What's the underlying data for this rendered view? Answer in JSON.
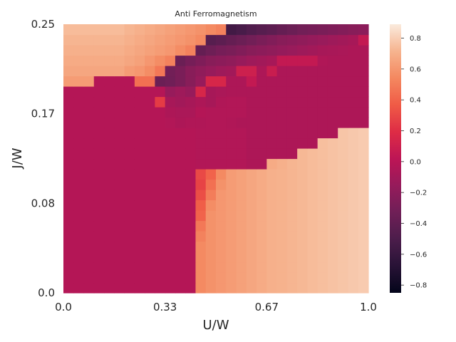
{
  "chart_data": {
    "type": "heatmap",
    "title": "Anti Ferromagnetism",
    "xlabel": "U/W",
    "ylabel": "J/W",
    "xlim": [
      0.0,
      1.0
    ],
    "ylim": [
      0.0,
      0.25
    ],
    "x_ticks": [
      "0.0",
      "0.33",
      "0.67",
      "1.0"
    ],
    "y_ticks": [
      "0.0",
      "0.08",
      "0.17",
      "0.25"
    ],
    "colorbar": {
      "range": [
        -0.85,
        0.89
      ],
      "ticks": [
        "−0.8",
        "−0.6",
        "−0.4",
        "−0.2",
        "0.0",
        "0.2",
        "0.4",
        "0.6",
        "0.8"
      ],
      "tick_values": [
        -0.8,
        -0.6,
        -0.4,
        -0.2,
        0.0,
        0.2,
        0.4,
        0.6,
        0.8
      ],
      "colormap": "rocket"
    },
    "grid": false,
    "n_cols": 30,
    "n_rows": 26,
    "row_order": "bottom-to-top (row 0 is J/W = 0)",
    "values": [
      [
        -0.02,
        -0.02,
        -0.02,
        -0.02,
        -0.02,
        -0.02,
        -0.02,
        -0.02,
        -0.02,
        -0.02,
        -0.02,
        -0.02,
        -0.02,
        0.55,
        0.58,
        0.6,
        0.62,
        0.64,
        0.66,
        0.68,
        0.7,
        0.71,
        0.72,
        0.73,
        0.74,
        0.75,
        0.76,
        0.77,
        0.78,
        0.79
      ],
      [
        -0.02,
        -0.02,
        -0.02,
        -0.02,
        -0.02,
        -0.02,
        -0.02,
        -0.02,
        -0.02,
        -0.02,
        -0.02,
        -0.02,
        -0.02,
        0.55,
        0.58,
        0.6,
        0.62,
        0.64,
        0.66,
        0.68,
        0.7,
        0.71,
        0.72,
        0.73,
        0.74,
        0.75,
        0.76,
        0.77,
        0.78,
        0.79
      ],
      [
        -0.02,
        -0.02,
        -0.02,
        -0.02,
        -0.02,
        -0.02,
        -0.02,
        -0.02,
        -0.02,
        -0.02,
        -0.02,
        -0.02,
        -0.02,
        0.55,
        0.58,
        0.6,
        0.62,
        0.64,
        0.66,
        0.68,
        0.7,
        0.71,
        0.72,
        0.73,
        0.74,
        0.75,
        0.76,
        0.77,
        0.78,
        0.79
      ],
      [
        -0.02,
        -0.02,
        -0.02,
        -0.02,
        -0.02,
        -0.02,
        -0.02,
        -0.02,
        -0.02,
        -0.02,
        -0.02,
        -0.02,
        -0.02,
        0.55,
        0.58,
        0.6,
        0.62,
        0.64,
        0.66,
        0.68,
        0.7,
        0.71,
        0.72,
        0.73,
        0.74,
        0.75,
        0.76,
        0.77,
        0.78,
        0.79
      ],
      [
        -0.02,
        -0.02,
        -0.02,
        -0.02,
        -0.02,
        -0.02,
        -0.02,
        -0.02,
        -0.02,
        -0.02,
        -0.02,
        -0.02,
        -0.02,
        0.55,
        0.58,
        0.6,
        0.62,
        0.64,
        0.66,
        0.68,
        0.7,
        0.71,
        0.72,
        0.73,
        0.74,
        0.75,
        0.76,
        0.77,
        0.78,
        0.79
      ],
      [
        -0.02,
        -0.02,
        -0.02,
        -0.02,
        -0.02,
        -0.02,
        -0.02,
        -0.02,
        -0.02,
        -0.02,
        -0.02,
        -0.02,
        -0.02,
        0.52,
        0.58,
        0.6,
        0.62,
        0.64,
        0.66,
        0.68,
        0.7,
        0.71,
        0.72,
        0.73,
        0.74,
        0.75,
        0.76,
        0.77,
        0.78,
        0.79
      ],
      [
        -0.02,
        -0.02,
        -0.02,
        -0.02,
        -0.02,
        -0.02,
        -0.02,
        -0.02,
        -0.02,
        -0.02,
        -0.02,
        -0.02,
        -0.02,
        0.48,
        0.58,
        0.6,
        0.62,
        0.64,
        0.66,
        0.68,
        0.7,
        0.71,
        0.72,
        0.73,
        0.74,
        0.75,
        0.76,
        0.77,
        0.78,
        0.79
      ],
      [
        -0.02,
        -0.02,
        -0.02,
        -0.02,
        -0.02,
        -0.02,
        -0.02,
        -0.02,
        -0.02,
        -0.02,
        -0.02,
        -0.02,
        -0.02,
        0.4,
        0.58,
        0.6,
        0.62,
        0.64,
        0.66,
        0.68,
        0.7,
        0.71,
        0.72,
        0.73,
        0.74,
        0.75,
        0.76,
        0.77,
        0.78,
        0.79
      ],
      [
        -0.02,
        -0.02,
        -0.02,
        -0.02,
        -0.02,
        -0.02,
        -0.02,
        -0.02,
        -0.02,
        -0.02,
        -0.02,
        -0.02,
        -0.02,
        0.38,
        0.56,
        0.6,
        0.62,
        0.64,
        0.66,
        0.68,
        0.7,
        0.71,
        0.72,
        0.73,
        0.74,
        0.75,
        0.76,
        0.77,
        0.78,
        0.79
      ],
      [
        -0.02,
        -0.02,
        -0.02,
        -0.02,
        -0.02,
        -0.02,
        -0.02,
        -0.02,
        -0.02,
        -0.02,
        -0.02,
        -0.02,
        -0.02,
        0.32,
        0.5,
        0.6,
        0.62,
        0.64,
        0.66,
        0.68,
        0.7,
        0.71,
        0.72,
        0.73,
        0.74,
        0.75,
        0.76,
        0.77,
        0.78,
        0.79
      ],
      [
        -0.02,
        -0.02,
        -0.02,
        -0.02,
        -0.02,
        -0.02,
        -0.02,
        -0.02,
        -0.02,
        -0.02,
        -0.02,
        -0.02,
        -0.02,
        0.28,
        0.45,
        0.58,
        0.62,
        0.64,
        0.66,
        0.68,
        0.7,
        0.71,
        0.72,
        0.73,
        0.74,
        0.75,
        0.76,
        0.77,
        0.78,
        0.79
      ],
      [
        -0.02,
        -0.02,
        -0.02,
        -0.02,
        -0.02,
        -0.02,
        -0.02,
        -0.02,
        -0.02,
        -0.02,
        -0.02,
        -0.02,
        -0.02,
        0.3,
        0.4,
        0.55,
        0.62,
        0.64,
        0.66,
        0.68,
        0.7,
        0.71,
        0.72,
        0.73,
        0.74,
        0.75,
        0.76,
        0.77,
        0.78,
        0.79
      ],
      [
        -0.02,
        -0.02,
        -0.02,
        -0.02,
        -0.02,
        -0.02,
        -0.02,
        -0.02,
        -0.02,
        -0.02,
        -0.02,
        -0.02,
        -0.02,
        -0.03,
        -0.03,
        -0.03,
        -0.03,
        -0.03,
        -0.05,
        -0.05,
        0.68,
        0.7,
        0.72,
        0.73,
        0.74,
        0.75,
        0.76,
        0.77,
        0.78,
        0.79
      ],
      [
        -0.02,
        -0.02,
        -0.02,
        -0.02,
        -0.02,
        -0.02,
        -0.02,
        -0.02,
        -0.02,
        -0.02,
        -0.02,
        -0.02,
        -0.02,
        -0.03,
        -0.03,
        -0.03,
        -0.03,
        -0.03,
        -0.05,
        -0.05,
        -0.05,
        -0.05,
        -0.05,
        0.73,
        0.74,
        0.75,
        0.76,
        0.77,
        0.78,
        0.79
      ],
      [
        -0.02,
        -0.02,
        -0.02,
        -0.02,
        -0.02,
        -0.02,
        -0.02,
        -0.02,
        -0.02,
        -0.02,
        -0.02,
        -0.02,
        -0.02,
        -0.03,
        -0.03,
        -0.03,
        -0.03,
        -0.03,
        -0.05,
        -0.05,
        -0.05,
        -0.05,
        -0.05,
        -0.05,
        -0.05,
        0.75,
        0.76,
        0.77,
        0.78,
        0.79
      ],
      [
        -0.02,
        -0.02,
        -0.02,
        -0.02,
        -0.02,
        -0.02,
        -0.02,
        -0.02,
        -0.02,
        -0.02,
        -0.02,
        -0.02,
        -0.02,
        -0.03,
        -0.03,
        -0.03,
        -0.03,
        -0.03,
        -0.05,
        -0.05,
        -0.05,
        -0.05,
        -0.05,
        -0.05,
        -0.05,
        -0.05,
        -0.05,
        0.77,
        0.78,
        0.79
      ],
      [
        -0.02,
        -0.02,
        -0.02,
        -0.02,
        -0.02,
        -0.02,
        -0.02,
        -0.02,
        -0.02,
        -0.02,
        -0.03,
        -0.05,
        -0.04,
        -0.04,
        -0.03,
        -0.03,
        -0.04,
        -0.05,
        -0.05,
        -0.05,
        -0.05,
        -0.05,
        -0.05,
        -0.05,
        -0.05,
        -0.05,
        -0.05,
        -0.05,
        -0.05,
        -0.05
      ],
      [
        -0.02,
        -0.02,
        -0.02,
        -0.02,
        -0.02,
        -0.02,
        -0.02,
        -0.02,
        -0.02,
        -0.02,
        -0.05,
        -0.06,
        -0.06,
        -0.02,
        -0.03,
        -0.03,
        -0.03,
        -0.03,
        -0.05,
        -0.05,
        -0.05,
        -0.05,
        -0.05,
        -0.05,
        -0.05,
        -0.05,
        -0.05,
        -0.05,
        -0.05,
        -0.05
      ],
      [
        -0.02,
        -0.02,
        -0.02,
        -0.02,
        -0.02,
        -0.02,
        -0.02,
        -0.02,
        -0.02,
        0.25,
        -0.08,
        -0.1,
        -0.08,
        -0.05,
        -0.08,
        -0.04,
        -0.03,
        -0.03,
        -0.05,
        -0.05,
        -0.05,
        -0.05,
        -0.05,
        -0.05,
        -0.05,
        -0.05,
        -0.05,
        -0.05,
        -0.05,
        -0.05
      ],
      [
        -0.02,
        -0.02,
        -0.02,
        -0.02,
        -0.02,
        -0.02,
        -0.02,
        -0.02,
        -0.02,
        -0.02,
        -0.15,
        -0.12,
        -0.15,
        0.15,
        -0.08,
        -0.06,
        -0.05,
        -0.05,
        -0.05,
        -0.05,
        -0.05,
        -0.05,
        -0.05,
        -0.05,
        -0.05,
        -0.05,
        -0.05,
        -0.05,
        -0.05,
        -0.05
      ],
      [
        0.62,
        0.62,
        0.62,
        -0.02,
        -0.02,
        -0.02,
        -0.02,
        0.45,
        0.45,
        -0.35,
        -0.33,
        -0.28,
        -0.22,
        -0.15,
        0.15,
        0.15,
        -0.05,
        -0.05,
        0.05,
        -0.05,
        -0.05,
        -0.05,
        -0.05,
        -0.05,
        -0.05,
        -0.05,
        -0.05,
        -0.05,
        -0.05,
        -0.05
      ],
      [
        0.66,
        0.66,
        0.66,
        0.66,
        0.66,
        0.66,
        0.62,
        0.6,
        0.56,
        0.48,
        -0.32,
        -0.28,
        -0.22,
        -0.18,
        -0.15,
        -0.12,
        -0.1,
        0.1,
        0.1,
        -0.05,
        0.08,
        -0.05,
        -0.05,
        -0.05,
        -0.05,
        -0.05,
        -0.05,
        -0.05,
        -0.05,
        -0.05
      ],
      [
        0.68,
        0.68,
        0.68,
        0.68,
        0.68,
        0.68,
        0.66,
        0.64,
        0.6,
        0.56,
        0.52,
        -0.35,
        -0.3,
        -0.26,
        -0.22,
        -0.2,
        -0.18,
        -0.15,
        -0.12,
        -0.1,
        -0.08,
        0.05,
        0.05,
        0.05,
        0.05,
        -0.04,
        -0.05,
        -0.05,
        -0.05,
        -0.05
      ],
      [
        0.7,
        0.7,
        0.7,
        0.7,
        0.7,
        0.7,
        0.68,
        0.66,
        0.64,
        0.62,
        0.6,
        0.56,
        0.52,
        -0.38,
        -0.34,
        -0.3,
        -0.28,
        -0.25,
        -0.22,
        -0.2,
        -0.18,
        -0.16,
        -0.14,
        -0.12,
        -0.1,
        -0.08,
        -0.07,
        -0.06,
        -0.05,
        -0.05
      ],
      [
        0.72,
        0.72,
        0.72,
        0.72,
        0.72,
        0.72,
        0.7,
        0.68,
        0.66,
        0.64,
        0.62,
        0.6,
        0.58,
        0.55,
        -0.45,
        -0.42,
        -0.38,
        -0.35,
        -0.32,
        -0.28,
        -0.25,
        -0.22,
        -0.2,
        -0.18,
        -0.16,
        -0.14,
        -0.12,
        -0.1,
        -0.08,
        0.05
      ],
      [
        0.74,
        0.74,
        0.74,
        0.74,
        0.74,
        0.74,
        0.72,
        0.7,
        0.68,
        0.66,
        0.64,
        0.62,
        0.6,
        0.58,
        0.55,
        0.52,
        -0.55,
        -0.52,
        -0.48,
        -0.45,
        -0.42,
        -0.38,
        -0.35,
        -0.32,
        -0.3,
        -0.28,
        -0.26,
        -0.24,
        -0.22,
        -0.2
      ]
    ]
  }
}
